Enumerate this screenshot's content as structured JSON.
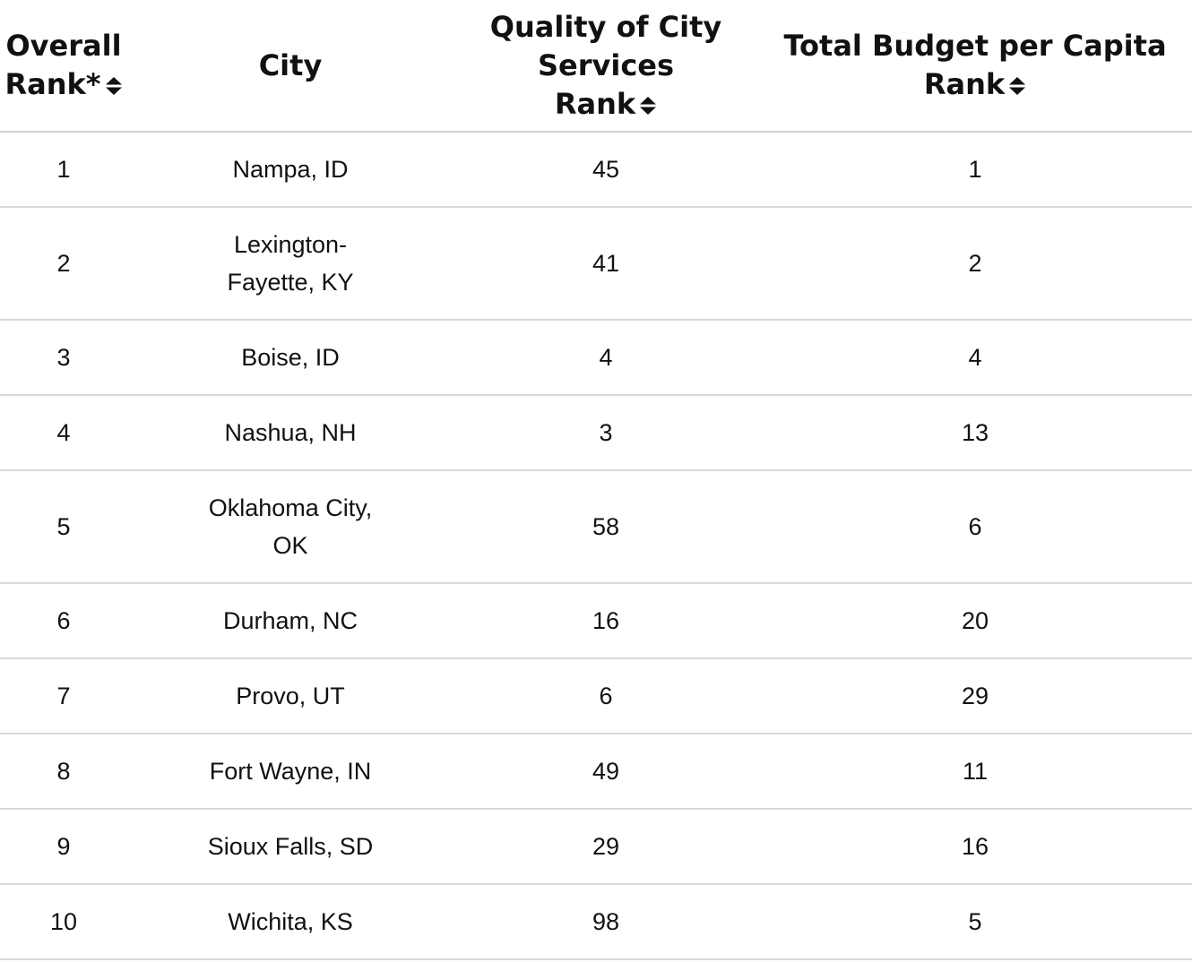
{
  "table": {
    "headers": {
      "overall_rank_line1": "Overall",
      "overall_rank_line2": "Rank*",
      "city": "City",
      "quality_line1": "Quality of City Services",
      "quality_line2": "Rank",
      "budget_line1": "Total Budget per Capita",
      "budget_line2": "Rank"
    },
    "icons": {
      "sort": "sort-updown-icon"
    },
    "rows": [
      {
        "overall": "1",
        "city": "Nampa, ID",
        "quality": "45",
        "budget": "1"
      },
      {
        "overall": "2",
        "city": "Lexington-Fayette, KY",
        "quality": "41",
        "budget": "2"
      },
      {
        "overall": "3",
        "city": "Boise, ID",
        "quality": "4",
        "budget": "4"
      },
      {
        "overall": "4",
        "city": "Nashua, NH",
        "quality": "3",
        "budget": "13"
      },
      {
        "overall": "5",
        "city": "Oklahoma City, OK",
        "quality": "58",
        "budget": "6"
      },
      {
        "overall": "6",
        "city": "Durham, NC",
        "quality": "16",
        "budget": "20"
      },
      {
        "overall": "7",
        "city": "Provo, UT",
        "quality": "6",
        "budget": "29"
      },
      {
        "overall": "8",
        "city": "Fort Wayne, IN",
        "quality": "49",
        "budget": "11"
      },
      {
        "overall": "9",
        "city": "Sioux Falls, SD",
        "quality": "29",
        "budget": "16"
      },
      {
        "overall": "10",
        "city": "Wichita, KS",
        "quality": "98",
        "budget": "5"
      }
    ]
  }
}
